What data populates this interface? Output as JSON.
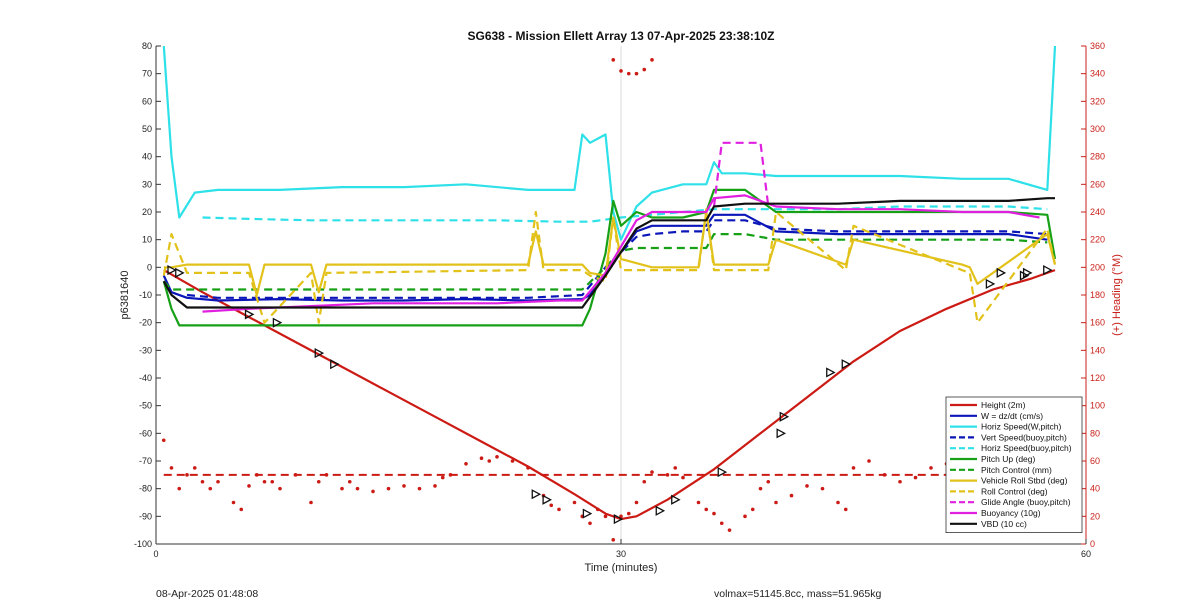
{
  "chart_data": {
    "type": "line",
    "title": "SG638 - Mission Ellett Array 13 07-Apr-2025 23:38:10Z",
    "xlabel": "Time (minutes)",
    "ylabel": "p6381640",
    "y2label": "(+) Heading (°M)",
    "xlim": [
      0,
      60
    ],
    "ylim": [
      -100,
      80
    ],
    "y2lim": [
      0,
      360
    ],
    "xticks": [
      0,
      30,
      60
    ],
    "yticks": [
      -100,
      -90,
      -80,
      -70,
      -60,
      -50,
      -40,
      -30,
      -20,
      -10,
      0,
      10,
      20,
      30,
      40,
      50,
      60,
      70,
      80
    ],
    "y2ticks": [
      0,
      20,
      40,
      60,
      80,
      100,
      120,
      140,
      160,
      180,
      200,
      220,
      240,
      260,
      280,
      300,
      320,
      340,
      360
    ],
    "grid_x": [
      30
    ],
    "legend_position": "bottom-right",
    "series": [
      {
        "name": "Height (2m)",
        "color": "#cc1a14",
        "style": "solid",
        "x": [
          0.5,
          3,
          6,
          9,
          12,
          15,
          18,
          21,
          24,
          27,
          29,
          30,
          31,
          33,
          36,
          39,
          42,
          45,
          48,
          51,
          54,
          56.5,
          58
        ],
        "y": [
          -1,
          -9,
          -18,
          -27,
          -36,
          -45,
          -54,
          -63,
          -72,
          -82,
          -89,
          -91,
          -90,
          -84,
          -73,
          -60,
          -47,
          -34,
          -23,
          -15,
          -8,
          -4,
          -1
        ]
      },
      {
        "name": "W = dz/dt (cm/s)",
        "color": "#0b16b8",
        "style": "solid",
        "x": [
          0.5,
          1,
          2,
          4,
          8,
          12,
          16,
          20,
          24,
          27.5,
          28,
          29,
          31,
          32,
          34,
          35.5,
          36,
          38,
          40,
          44,
          48,
          52,
          55,
          57.5
        ],
        "y": [
          -3,
          -9,
          -11,
          -12,
          -11.5,
          -12,
          -12,
          -11.5,
          -12,
          -11.5,
          -10,
          -2,
          13,
          15,
          15,
          15,
          19,
          19,
          13,
          12,
          12,
          12,
          12,
          10
        ]
      },
      {
        "name": "Horiz Speed(W,pitch)",
        "color": "#2ee0e8",
        "style": "solid",
        "x": [
          0.5,
          1,
          1.5,
          2.5,
          4,
          8,
          12,
          16,
          20,
          24,
          27,
          27.5,
          28,
          29,
          29.5,
          30,
          31,
          32,
          34,
          35.5,
          36,
          36.5,
          38,
          40,
          44,
          48,
          52,
          55,
          57.5,
          58
        ],
        "y": [
          80,
          40,
          18,
          27,
          28,
          28,
          29,
          29,
          30,
          28,
          28,
          48,
          45,
          48,
          20,
          10,
          22,
          27,
          30,
          30,
          38,
          34,
          34,
          33,
          33,
          33,
          32,
          32,
          28,
          80
        ]
      },
      {
        "name": "Vert Speed(buoy,pitch)",
        "color": "#0b16b8",
        "style": "dashed",
        "x": [
          2,
          4,
          8,
          12,
          16,
          20,
          24,
          27.5,
          29,
          31,
          32,
          34,
          35.5,
          36,
          38,
          40,
          44,
          48,
          52,
          55,
          57.5
        ],
        "y": [
          -10,
          -11,
          -11,
          -11,
          -11,
          -11,
          -11,
          -10,
          0,
          11,
          12,
          13,
          13,
          17,
          17,
          14,
          13,
          13,
          13,
          13,
          12
        ]
      },
      {
        "name": "Horiz Speed(buoy,pitch)",
        "color": "#2ee0e8",
        "style": "dashed",
        "x": [
          3,
          6,
          10,
          14,
          18,
          22,
          26,
          28,
          30,
          32,
          34,
          36,
          40,
          44,
          48,
          52,
          55,
          57.5
        ],
        "y": [
          18,
          17.5,
          17,
          17,
          17,
          17,
          16.5,
          16.5,
          18,
          19,
          20,
          21,
          21,
          21,
          22,
          22,
          22,
          21
        ]
      },
      {
        "name": "Pitch Up (deg)",
        "color": "#16a016",
        "style": "solid",
        "x": [
          0.5,
          1,
          1.5,
          2,
          4,
          8,
          12,
          16,
          20,
          24,
          27.5,
          28,
          28.5,
          29,
          29.5,
          30,
          31,
          32,
          34,
          35.5,
          36,
          38,
          40,
          44,
          48,
          52,
          55,
          57.5,
          58
        ],
        "y": [
          -5,
          -15,
          -21,
          -21,
          -21,
          -21,
          -21,
          -21,
          -21,
          -21,
          -21,
          -15,
          -5,
          5,
          24,
          15,
          20,
          18,
          18,
          20,
          28,
          28,
          20,
          20,
          20,
          20,
          20,
          19,
          3
        ]
      },
      {
        "name": "Pitch Control (mm)",
        "color": "#16a016",
        "style": "dashed",
        "x": [
          0.5,
          1,
          4,
          8,
          12,
          16,
          20,
          24,
          27.5,
          29,
          30,
          31,
          32,
          34,
          35.5,
          36,
          38,
          40,
          44,
          48,
          52,
          55,
          57.5
        ],
        "y": [
          -5,
          -8,
          -8,
          -8,
          -8,
          -8,
          -8,
          -8,
          -8,
          0,
          6,
          7,
          7,
          7,
          7,
          12,
          12,
          10,
          10,
          10,
          10,
          10,
          9
        ]
      },
      {
        "name": "Vehicle Roll Stbd (deg)",
        "color": "#e2c21a",
        "style": "solid",
        "x": [
          0.5,
          1,
          2,
          6,
          6.5,
          7,
          10,
          10.5,
          11,
          24,
          24.5,
          25,
          27.5,
          28,
          29,
          29.5,
          30,
          32,
          35,
          35.5,
          36,
          39.5,
          40,
          44.5,
          45,
          52,
          52.5,
          53,
          57.5,
          58
        ],
        "y": [
          0,
          0,
          1,
          1,
          -10,
          1,
          1,
          -9,
          1,
          1,
          13,
          1,
          1,
          -2,
          -3,
          18,
          3,
          0,
          0,
          20,
          1,
          1,
          10,
          1,
          10,
          1,
          0,
          -6,
          12,
          1
        ]
      },
      {
        "name": "Roll Control (deg)",
        "color": "#e2c21a",
        "style": "dashed",
        "x": [
          0.5,
          1,
          2,
          6,
          7,
          10,
          10.5,
          11,
          24,
          24.5,
          25,
          27.5,
          28,
          29,
          29.5,
          30,
          32,
          35,
          35.5,
          36,
          39.5,
          40,
          44.5,
          45,
          52,
          52.5,
          53,
          57.5,
          58
        ],
        "y": [
          -3,
          12,
          -2,
          -2,
          -20,
          -2,
          -20,
          -2,
          -1,
          20,
          -1,
          -1,
          -3,
          -5,
          18,
          -1,
          -1,
          -1,
          21,
          -1,
          -1,
          20,
          -1,
          15,
          -1,
          -2,
          -20,
          14,
          1
        ]
      },
      {
        "name": "Glide Angle (buoy,pitch)",
        "color": "#e020e0",
        "style": "dashed",
        "x": [
          36,
          36.5,
          38,
          39,
          39.5
        ],
        "y": [
          22,
          45,
          45,
          45,
          22
        ]
      },
      {
        "name": "Buoyancy (10g)",
        "color": "#e020e0",
        "style": "solid",
        "x": [
          3,
          6,
          10,
          14,
          18,
          22,
          26,
          27.5,
          29,
          31,
          32,
          34,
          35.5,
          36,
          38,
          40,
          44,
          48,
          52,
          55,
          57
        ],
        "y": [
          -16,
          -15,
          -14,
          -13,
          -13,
          -13,
          -12,
          -12,
          -2,
          17,
          20,
          20,
          20,
          25,
          26,
          22,
          21,
          21,
          20,
          20,
          18
        ]
      },
      {
        "name": "VBD (10 cc)",
        "color": "#111111",
        "style": "solid",
        "x": [
          0.5,
          1,
          2,
          8,
          14,
          20,
          26,
          27.5,
          29,
          31,
          32,
          35.5,
          36,
          38,
          40,
          44,
          48,
          52,
          55,
          57.5,
          58
        ],
        "y": [
          -5,
          -10,
          -14.5,
          -14.5,
          -14.5,
          -14.5,
          -14.5,
          -14.5,
          -3,
          14,
          17,
          17,
          22,
          23,
          23,
          23,
          24,
          24,
          24,
          25,
          25
        ]
      }
    ],
    "heading": {
      "name": "(+) Heading (°M)",
      "color": "#cc1a14",
      "axis": "right",
      "x": [
        0.5,
        1,
        1.5,
        2,
        2.5,
        3,
        3.5,
        4,
        5,
        5.5,
        6,
        6.5,
        7,
        7.5,
        8,
        9,
        10,
        10.5,
        11,
        12,
        12.5,
        13,
        14,
        15,
        16,
        17,
        18,
        18.5,
        19,
        20,
        21,
        21.5,
        22,
        23,
        24,
        25,
        25.5,
        26,
        27,
        27.5,
        28,
        28.5,
        29,
        29.5,
        30,
        30.5,
        31,
        31.5,
        32,
        33,
        33.5,
        34,
        35,
        35.5,
        36,
        36.5,
        37,
        38,
        38.5,
        39,
        39.5,
        40,
        41,
        42,
        43,
        44,
        44.5,
        45,
        46,
        47,
        48,
        49,
        50,
        51,
        52,
        53,
        54,
        55,
        55.5,
        56,
        56.5,
        57,
        57.5,
        58,
        29.5,
        30,
        30.5,
        31,
        31.5,
        32
      ],
      "y": [
        75,
        55,
        40,
        50,
        55,
        45,
        40,
        45,
        30,
        25,
        42,
        50,
        45,
        45,
        40,
        50,
        30,
        45,
        50,
        40,
        45,
        40,
        38,
        40,
        42,
        40,
        42,
        48,
        50,
        58,
        62,
        60,
        63,
        60,
        55,
        35,
        28,
        25,
        30,
        20,
        15,
        25,
        20,
        3,
        20,
        22,
        30,
        45,
        52,
        50,
        55,
        48,
        30,
        25,
        22,
        15,
        10,
        20,
        25,
        40,
        45,
        30,
        35,
        42,
        40,
        30,
        25,
        55,
        60,
        50,
        45,
        48,
        55,
        58,
        60,
        58,
        55,
        60,
        35,
        25,
        35,
        45,
        38,
        40,
        350,
        342,
        340,
        340,
        343,
        350
      ]
    },
    "heading_ref_line": 50,
    "markers": {
      "name": "Height (2m)",
      "x": [
        1,
        1.5,
        6,
        7.8,
        10.5,
        11.5,
        24.5,
        25.2,
        27.8,
        29.8,
        32.5,
        33.5,
        36.5,
        40.3,
        40.5,
        43.5,
        44.5,
        53.8,
        54.5,
        56,
        56.2,
        57.5
      ],
      "y": [
        -1,
        -2,
        -17,
        -20,
        -31,
        -35,
        -82,
        -84,
        -89,
        -91,
        -88,
        -84,
        -74,
        -60,
        -54,
        -38,
        -35,
        -6,
        -2,
        -3,
        -2,
        -1
      ]
    }
  },
  "footer": {
    "left": "08-Apr-2025 01:48:08",
    "right": "volmax=51145.8cc, mass=51.965kg"
  }
}
